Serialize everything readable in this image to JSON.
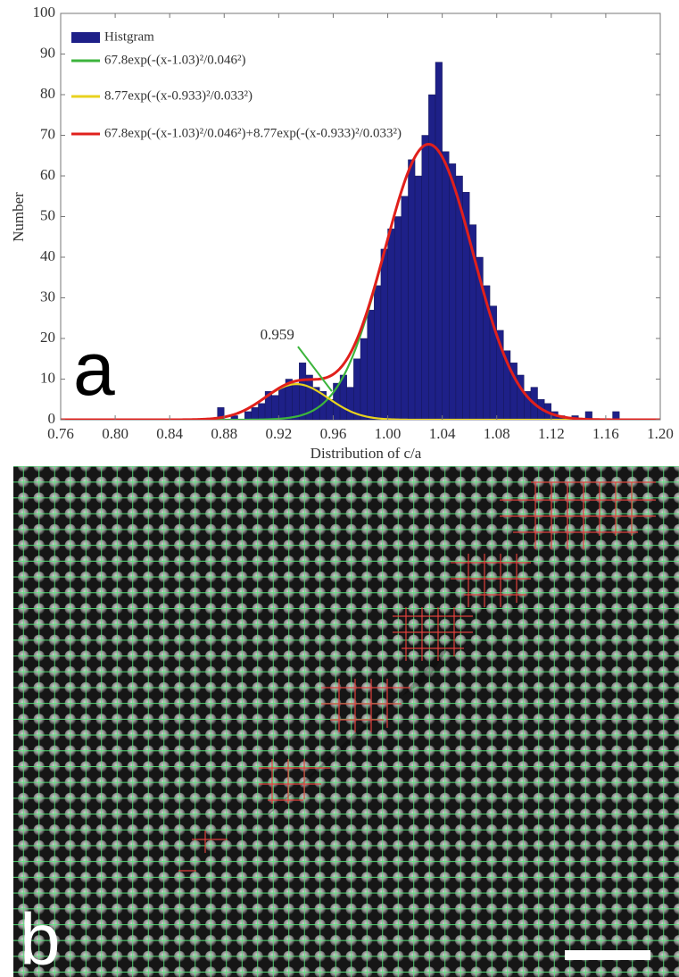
{
  "chart_data": {
    "type": "histogram",
    "panel_label": "a",
    "x_label": "Distribution of c/a",
    "y_label": "Number",
    "bins": [
      0.76,
      0.765,
      0.77,
      0.775,
      0.78,
      0.785,
      0.79,
      0.795,
      0.8,
      0.805,
      0.81,
      0.815,
      0.82,
      0.825,
      0.83,
      0.835,
      0.84,
      0.845,
      0.85,
      0.855,
      0.86,
      0.865,
      0.87,
      0.875,
      0.88,
      0.885,
      0.89,
      0.895,
      0.9,
      0.905,
      0.91,
      0.915,
      0.92,
      0.925,
      0.93,
      0.935,
      0.94,
      0.945,
      0.95,
      0.955,
      0.96,
      0.965,
      0.97,
      0.975,
      0.98,
      0.985,
      0.99,
      0.995,
      1.0,
      1.005,
      1.01,
      1.015,
      1.02,
      1.025,
      1.03,
      1.035,
      1.04,
      1.045,
      1.05,
      1.055,
      1.06,
      1.065,
      1.07,
      1.075,
      1.08,
      1.085,
      1.09,
      1.095,
      1.1,
      1.105,
      1.11,
      1.115,
      1.12,
      1.125,
      1.13,
      1.135,
      1.14,
      1.145,
      1.15,
      1.155,
      1.16,
      1.165,
      1.17,
      1.175,
      1.18,
      1.185,
      1.19,
      1.195,
      1.2
    ],
    "series": [
      {
        "name": "Histgram",
        "color": "#1e2088",
        "values": [
          0,
          0,
          0,
          0,
          0,
          0,
          0,
          0,
          0,
          0,
          0,
          0,
          0,
          0,
          0,
          0,
          0,
          0,
          0,
          0,
          0,
          0,
          0,
          3,
          0,
          1,
          0,
          2,
          3,
          4,
          7,
          6,
          8,
          10,
          9,
          14,
          11,
          8,
          7,
          5,
          9,
          11,
          8,
          15,
          20,
          27,
          33,
          42,
          47,
          50,
          55,
          64,
          60,
          70,
          80,
          88,
          66,
          63,
          60,
          56,
          48,
          40,
          33,
          28,
          22,
          17,
          14,
          11,
          7,
          8,
          5,
          4,
          2,
          1,
          0,
          1,
          0,
          2,
          0,
          0,
          0,
          2,
          0,
          0,
          0,
          0,
          0,
          0
        ]
      }
    ],
    "fits": [
      {
        "name": "67.8exp(-(x-1.03)²/0.046²)",
        "color": "#3cb43c",
        "terms": [
          {
            "amplitude": 67.8,
            "center": 1.03,
            "width": 0.046
          }
        ]
      },
      {
        "name": "8.77exp(-(x-0.933)²/0.033²)",
        "color": "#e8d21e",
        "terms": [
          {
            "amplitude": 8.77,
            "center": 0.933,
            "width": 0.033
          }
        ]
      },
      {
        "name": "67.8exp(-(x-1.03)²/0.046²)+8.77exp(-(x-0.933)²/0.033²)",
        "color": "#e0201c",
        "terms": [
          {
            "amplitude": 67.8,
            "center": 1.03,
            "width": 0.046
          },
          {
            "amplitude": 8.77,
            "center": 0.933,
            "width": 0.033
          }
        ]
      }
    ],
    "annotation": {
      "text": "0.959",
      "x": 0.959,
      "y": 7
    },
    "xlim": [
      0.76,
      1.2
    ],
    "xticks": [
      0.76,
      {
        "value": 0.8,
        "label": "0.80"
      },
      0.84,
      0.88,
      0.92,
      0.96,
      {
        "value": 1.0,
        "label": "1.00"
      },
      1.04,
      1.08,
      1.12,
      1.16,
      {
        "value": 1.2,
        "label": "1.20"
      }
    ],
    "ylim": [
      0,
      100
    ],
    "yticks": [
      0,
      10,
      20,
      30,
      40,
      50,
      60,
      70,
      80,
      90,
      100
    ],
    "grid": false
  },
  "image_panel": {
    "label": "b"
  }
}
